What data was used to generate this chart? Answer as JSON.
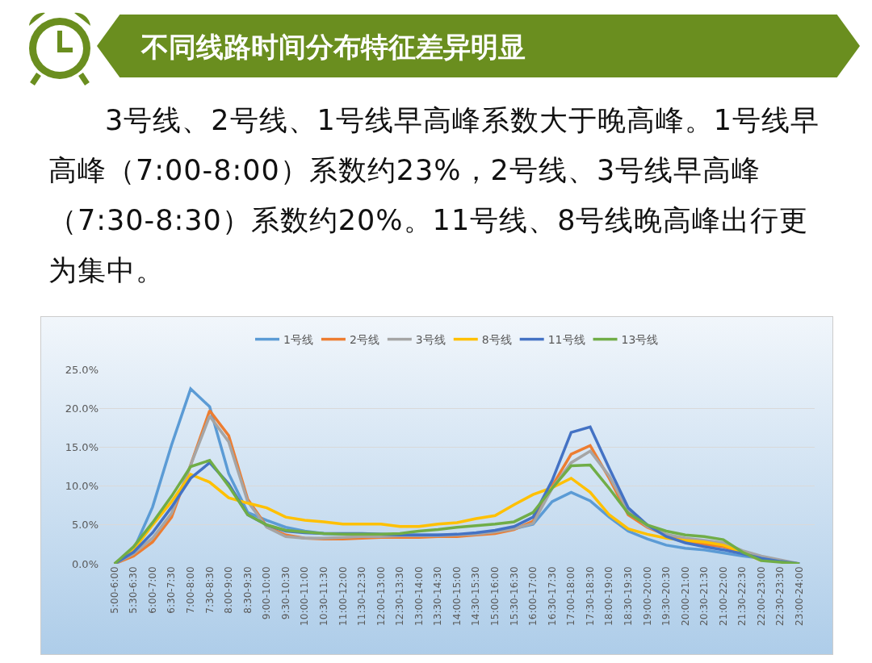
{
  "chart_data": {
    "type": "line",
    "title": "不同线路时间分布特征差异明显",
    "subtitle": "3号线、2号线、1号线早高峰系数大于晚高峰。1号线早高峰（7:00-8:00）系数约23%，2号线、3号线早高峰（7:30-8:30）系数约20%。11号线、8号线晚高峰出行更为集中。",
    "categories": [
      "5:00-6:00",
      "5:30-6:30",
      "6:00-7:00",
      "6:30-7:30",
      "7:00-8:00",
      "7:30-8:30",
      "8:00-9:00",
      "8:30-9:30",
      "9:00-10:00",
      "9:30-10:30",
      "10:00-11:00",
      "10:30-11:30",
      "11:00-12:00",
      "11:30-12:30",
      "12:00-13:00",
      "12:30-13:30",
      "13:00-14:00",
      "13:30-14:30",
      "14:00-15:00",
      "14:30-15:30",
      "15:00-16:00",
      "15:30-16:30",
      "16:00-17:00",
      "16:30-17:30",
      "17:00-18:00",
      "17:30-18:30",
      "18:00-19:00",
      "18:30-19:30",
      "19:00-20:00",
      "19:30-20:30",
      "20:00-21:00",
      "20:30-21:30",
      "21:00-22:00",
      "21:30-22:30",
      "22:00-23:00",
      "22:30-23:30",
      "23:00-24:00"
    ],
    "series": [
      {
        "name": "1号线",
        "color": "#5b9bd5",
        "values": [
          0,
          1.8,
          7.3,
          15.3,
          22.5,
          20.2,
          11.6,
          6.6,
          5.6,
          4.7,
          4.2,
          3.9,
          3.8,
          3.7,
          3.7,
          3.7,
          3.7,
          3.7,
          3.7,
          3.8,
          4.1,
          4.5,
          5.1,
          8.0,
          9.2,
          8.1,
          6.0,
          4.2,
          3.2,
          2.4,
          2.0,
          1.8,
          1.4,
          1.0,
          0.7,
          0.3,
          0
        ]
      },
      {
        "name": "2号线",
        "color": "#ed7d31",
        "values": [
          0,
          1.0,
          2.8,
          6.0,
          12.7,
          19.7,
          16.5,
          8.3,
          4.8,
          3.7,
          3.3,
          3.2,
          3.2,
          3.3,
          3.4,
          3.4,
          3.4,
          3.5,
          3.5,
          3.7,
          3.9,
          4.4,
          5.5,
          10.0,
          14.1,
          15.2,
          11.0,
          6.3,
          4.7,
          3.7,
          3.0,
          2.5,
          2.2,
          1.5,
          0.7,
          null,
          null
        ]
      },
      {
        "name": "3号线",
        "color": "#a5a5a5",
        "values": [
          0,
          1.3,
          3.3,
          6.5,
          12.7,
          19.0,
          15.7,
          8.0,
          4.7,
          3.5,
          3.3,
          3.3,
          3.4,
          3.5,
          3.5,
          3.6,
          3.6,
          3.6,
          3.7,
          3.8,
          4.1,
          4.5,
          5.2,
          9.7,
          13.0,
          14.5,
          11.3,
          6.8,
          4.8,
          3.8,
          3.3,
          3.0,
          2.7,
          1.7,
          1.0,
          0.5,
          0
        ]
      },
      {
        "name": "8号线",
        "color": "#ffc000",
        "values": [
          0,
          1.8,
          5.0,
          8.0,
          11.5,
          10.5,
          8.5,
          7.8,
          7.2,
          6.0,
          5.6,
          5.4,
          5.1,
          5.1,
          5.1,
          4.8,
          4.8,
          5.1,
          5.3,
          5.8,
          6.2,
          7.6,
          8.9,
          9.8,
          11.0,
          9.2,
          6.3,
          4.5,
          3.8,
          3.3,
          3.0,
          2.8,
          2.4,
          1.5,
          0.4,
          null,
          null
        ]
      },
      {
        "name": "11号线",
        "color": "#4472c4",
        "values": [
          0,
          1.5,
          4.0,
          7.3,
          11.0,
          13.0,
          10.3,
          6.3,
          5.0,
          4.2,
          4.0,
          3.9,
          3.9,
          3.9,
          3.8,
          3.7,
          3.7,
          3.7,
          3.8,
          4.0,
          4.3,
          4.8,
          6.0,
          10.7,
          16.9,
          17.6,
          12.3,
          7.2,
          5.0,
          3.5,
          2.7,
          2.2,
          1.8,
          1.3,
          0.7,
          0.3,
          0
        ]
      },
      {
        "name": "13号线",
        "color": "#70ad47",
        "values": [
          0,
          2.2,
          5.3,
          8.7,
          12.5,
          13.3,
          10.0,
          6.3,
          5.0,
          4.3,
          4.1,
          3.9,
          3.8,
          3.8,
          3.8,
          3.9,
          4.2,
          4.4,
          4.7,
          4.9,
          5.1,
          5.4,
          6.6,
          9.7,
          12.6,
          12.7,
          9.7,
          6.5,
          5.0,
          4.2,
          3.7,
          3.5,
          3.1,
          1.5,
          0.4,
          0.2,
          0
        ]
      }
    ],
    "ylim": [
      0,
      25
    ],
    "yticks": [
      {
        "value": 0,
        "label": "0.0%"
      },
      {
        "value": 5,
        "label": "5.0%"
      },
      {
        "value": 10,
        "label": "10.0%"
      },
      {
        "value": 15,
        "label": "15.0%"
      },
      {
        "value": 20,
        "label": "20.0%"
      },
      {
        "value": 25,
        "label": "25.0%"
      }
    ],
    "grid": "y",
    "legend": "top",
    "marker": "none",
    "line_style": "solid"
  }
}
